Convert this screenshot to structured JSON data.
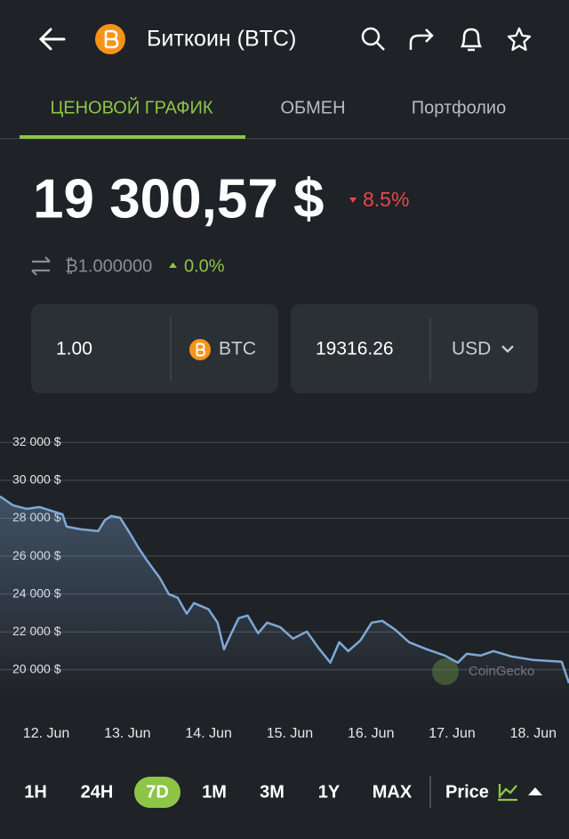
{
  "header": {
    "title": "Биткоин (BTC)"
  },
  "tabs": [
    "ЦЕНОВОЙ ГРАФИК",
    "ОБМЕН",
    "Портфолио"
  ],
  "price": {
    "value": "19 300,57 $",
    "change": "8.5%"
  },
  "btc_row": {
    "amount": "₿1.000000",
    "change": "0.0%"
  },
  "converter": {
    "from_amount": "1.00",
    "from_currency": "BTC",
    "to_amount": "19316.26",
    "to_currency": "USD"
  },
  "chart_data": {
    "type": "line",
    "color": "#7ea8d6",
    "watermark": "CoinGecko",
    "x": [
      11.43,
      11.59,
      11.76,
      11.92,
      12.09,
      12.2,
      12.25,
      12.42,
      12.64,
      12.72,
      12.8,
      12.91,
      13.02,
      13.13,
      13.24,
      13.4,
      13.51,
      13.62,
      13.73,
      13.82,
      14.0,
      14.11,
      14.19,
      14.28,
      14.37,
      14.48,
      14.61,
      14.72,
      14.88,
      15.04,
      15.21,
      15.35,
      15.5,
      15.61,
      15.72,
      15.87,
      16.01,
      16.14,
      16.3,
      16.47,
      16.69,
      16.91,
      17.07,
      17.18,
      17.35,
      17.51,
      17.73,
      18.0,
      18.35,
      18.44
    ],
    "values": [
      29155,
      28686,
      28498,
      28592,
      28357,
      28216,
      27559,
      27418,
      27324,
      27888,
      28122,
      28028,
      27277,
      26479,
      25775,
      24836,
      23991,
      23803,
      22958,
      23521,
      23193,
      22488,
      21080,
      21925,
      22723,
      22864,
      21925,
      22488,
      22253,
      21643,
      22019,
      21174,
      20376,
      21455,
      20986,
      21549,
      22488,
      22582,
      22112,
      21455,
      21080,
      20751,
      20376,
      20845,
      20751,
      20986,
      20704,
      20517,
      20423,
      19296
    ],
    "xlim": [
      11.43,
      18.44
    ],
    "ylim": [
      18300,
      33000
    ],
    "xticks": [
      {
        "value": 12,
        "label": "12. Jun"
      },
      {
        "value": 13,
        "label": "13. Jun"
      },
      {
        "value": 14,
        "label": "14. Jun"
      },
      {
        "value": 15,
        "label": "15. Jun"
      },
      {
        "value": 16,
        "label": "16. Jun"
      },
      {
        "value": 17,
        "label": "17. Jun"
      },
      {
        "value": 18,
        "label": "18. Jun"
      }
    ],
    "yticks": [
      {
        "value": 20000,
        "label": "20 000 $"
      },
      {
        "value": 22000,
        "label": "22 000 $"
      },
      {
        "value": 24000,
        "label": "24 000 $"
      },
      {
        "value": 26000,
        "label": "26 000 $"
      },
      {
        "value": 28000,
        "label": "28 000 $"
      },
      {
        "value": 30000,
        "label": "30 000 $"
      },
      {
        "value": 32000,
        "label": "32 000 $"
      }
    ],
    "grid": true
  },
  "ranges": [
    "1H",
    "24H",
    "7D",
    "1M",
    "3M",
    "1Y",
    "MAX"
  ],
  "metric": "Price"
}
